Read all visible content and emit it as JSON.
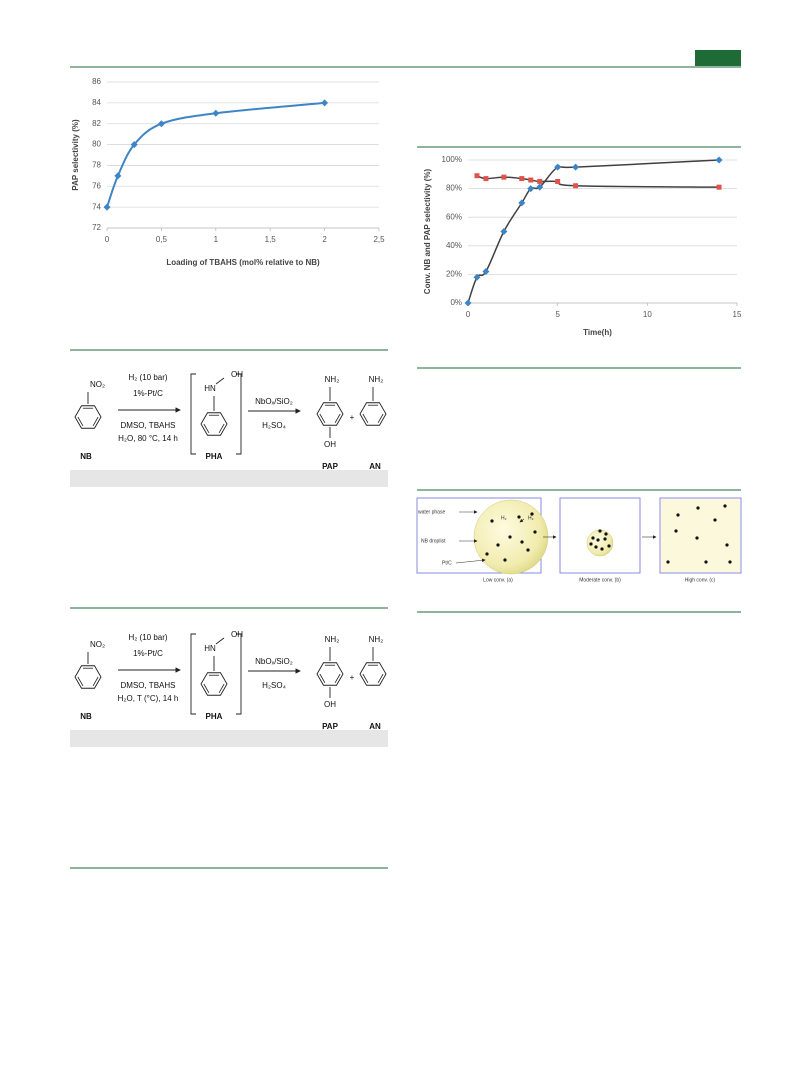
{
  "chart_data": [
    {
      "type": "line",
      "x": [
        0,
        0.1,
        0.25,
        0.5,
        1,
        2
      ],
      "series": [
        {
          "color": "#3d85c6",
          "marker": "diamond",
          "values": [
            74,
            77,
            80,
            82,
            83,
            84
          ]
        }
      ],
      "xlim": [
        0,
        2.5
      ],
      "xticks": [
        0,
        {
          "value": 0.5,
          "label": "0,5"
        },
        1,
        {
          "value": 1.5,
          "label": "1,5"
        },
        2,
        {
          "value": 2.5,
          "label": "2,5"
        }
      ],
      "ylim": [
        72,
        86
      ],
      "yticks": [
        72,
        74,
        76,
        78,
        80,
        82,
        84,
        86
      ],
      "grid": true,
      "xlabel": "Loading of TBAHS  (mol% relative to NB)",
      "ylabel": "PAP selectivity (%)"
    },
    {
      "type": "scatter",
      "line_color": "#404040",
      "series": [
        {
          "color": "#3d85c6",
          "marker": "diamond",
          "x": [
            0,
            0.5,
            1,
            2,
            3,
            3.5,
            4,
            5,
            6,
            14
          ],
          "values": [
            0,
            18,
            22,
            50,
            70,
            80,
            81,
            95,
            95,
            100
          ]
        },
        {
          "color": "#e0524a",
          "marker": "square",
          "x": [
            0.5,
            1,
            2,
            3,
            3.5,
            4,
            5,
            6,
            14
          ],
          "values": [
            89,
            87,
            88,
            87,
            86,
            85,
            85,
            82,
            81
          ]
        }
      ],
      "xlim": [
        0,
        15
      ],
      "xticks": [
        0,
        5,
        10,
        15
      ],
      "ylim": [
        0,
        100
      ],
      "yticks": [
        {
          "value": 0,
          "label": "0%"
        },
        {
          "value": 20,
          "label": "20%"
        },
        {
          "value": 40,
          "label": "40%"
        },
        {
          "value": 60,
          "label": "60%"
        },
        {
          "value": 80,
          "label": "80%"
        },
        {
          "value": 100,
          "label": "100%"
        }
      ],
      "grid": true,
      "xlabel": "Time(h)",
      "ylabel": "Conv. NB and PAP selectivity (%)"
    }
  ],
  "schemes": [
    {
      "nb_substituent": "NO₂",
      "nb": "NB",
      "cond_above": [
        "H₂ (10 bar)",
        "1%-Pt/C"
      ],
      "cond_below": [
        "DMSO, TBAHS",
        "H₂O, 80 °C, 14  h"
      ],
      "pha_n": "HN",
      "pha_o": "OH",
      "pha": "PHA",
      "acid_above": "NbOₓ/SiO₂",
      "acid_below": "H₂SO₄",
      "pap_top": "NH₂",
      "pap_bottom": "OH",
      "pap": "PAP",
      "plus": "+",
      "an_top": "NH₂",
      "an": "AN"
    },
    {
      "nb_substituent": "NO₂",
      "nb": "NB",
      "cond_above": [
        "H₂ (10 bar)",
        "1%-Pt/C"
      ],
      "cond_below": [
        "DMSO, TBAHS",
        "H₂O, T (°C), 14  h"
      ],
      "pha_n": "HN",
      "pha_o": "OH",
      "pha": "PHA",
      "acid_above": "NbOₓ/SiO₂",
      "acid_below": "H₂SO₄",
      "pap_top": "NH₂",
      "pap_bottom": "OH",
      "pap": "PAP",
      "plus": "+",
      "an_top": "NH₂",
      "an": "AN"
    }
  ],
  "diagram": {
    "labels": [
      "water phase",
      "NB droplist",
      "Pt/C"
    ],
    "h2": [
      "H₂",
      "H₂"
    ],
    "captions": [
      "Low conv. (a)",
      "Moderate conv. (b)",
      "High conv. (c)"
    ]
  }
}
